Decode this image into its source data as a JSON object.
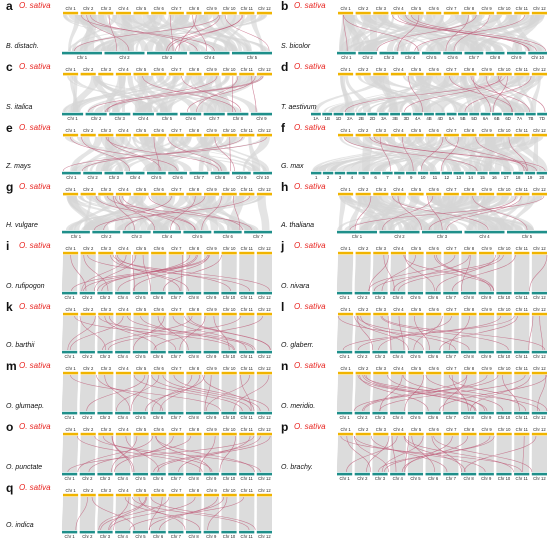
{
  "figure": {
    "reference_color": "#f0b400",
    "query_color": "#1f8f8a",
    "link_color": "#d6d6d6",
    "highlight_color": "#c0607c",
    "panels": [
      {
        "label": "a",
        "top": "O. sativa",
        "bottom": "B. distach.",
        "top_chr": [
          "Chr 1",
          "Chr 2",
          "Chr 3",
          "Chr 4",
          "Chr 5",
          "Chr 6",
          "Chr 7",
          "Chr 8",
          "Chr 9",
          "Chr 10",
          "Chr 11",
          "Chr 12"
        ],
        "bottom_chr": [
          "Chr 1",
          "Chr 2",
          "Chr 3",
          "Chr 4",
          "Chr 5"
        ]
      },
      {
        "label": "b",
        "top": "O. sativa",
        "bottom": "S. bicolor",
        "top_chr": [
          "Chr 1",
          "Chr 2",
          "Chr 3",
          "Chr 4",
          "Chr 5",
          "Chr 6",
          "Chr 7",
          "Chr 8",
          "Chr 9",
          "Chr 10",
          "Chr 11",
          "Chr 12"
        ],
        "bottom_chr": [
          "Chr 1",
          "Chr 2",
          "Chr 3",
          "Chr 4",
          "Chr 5",
          "Chr 6",
          "Chr 7",
          "Chr 8",
          "Chr 9",
          "Chr 10"
        ]
      },
      {
        "label": "c",
        "top": "O. sativa",
        "bottom": "S. italica",
        "top_chr": [
          "Chr 1",
          "Chr 2",
          "Chr 3",
          "Chr 4",
          "Chr 5",
          "Chr 6",
          "Chr 7",
          "Chr 8",
          "Chr 9",
          "Chr 10",
          "Chr 11",
          "Chr 12"
        ],
        "bottom_chr": [
          "Chr 1",
          "Chr 2",
          "Chr 3",
          "Chr 4",
          "Chr 5",
          "Chr 6",
          "Chr 7",
          "Chr 8",
          "Chr 9"
        ]
      },
      {
        "label": "d",
        "top": "O. sativa",
        "bottom": "T. aestivum",
        "top_chr": [
          "Chr 1",
          "Chr 2",
          "Chr 3",
          "Chr 4",
          "Chr 5",
          "Chr 6",
          "Chr 7",
          "Chr 8",
          "Chr 9",
          "Chr 10",
          "Chr 11",
          "Chr 12"
        ],
        "bottom_chr": [
          "1A",
          "1B",
          "1D",
          "2A",
          "2B",
          "2D",
          "3A",
          "3B",
          "3D",
          "4A",
          "4B",
          "4D",
          "5A",
          "5B",
          "5D",
          "6A",
          "6B",
          "6D",
          "7A",
          "7B",
          "7D"
        ]
      },
      {
        "label": "e",
        "top": "O. sativa",
        "bottom": "Z. mays",
        "top_chr": [
          "Chr 1",
          "Chr 2",
          "Chr 3",
          "Chr 4",
          "Chr 5",
          "Chr 6",
          "Chr 7",
          "Chr 8",
          "Chr 9",
          "Chr 10",
          "Chr 11",
          "Chr 12"
        ],
        "bottom_chr": [
          "Chr 1",
          "Chr 2",
          "Chr 3",
          "Chr 4",
          "Chr 5",
          "Chr 6",
          "Chr 7",
          "Chr 8",
          "Chr 9",
          "Chr 10"
        ]
      },
      {
        "label": "f",
        "top": "O. sativa",
        "bottom": "G. max",
        "top_chr": [
          "Chr 1",
          "Chr 2",
          "Chr 3",
          "Chr 4",
          "Chr 5",
          "Chr 6",
          "Chr 7",
          "Chr 8",
          "Chr 9",
          "Chr 10",
          "Chr 11",
          "Chr 12"
        ],
        "bottom_chr": [
          "1",
          "2",
          "3",
          "4",
          "5",
          "6",
          "7",
          "8",
          "9",
          "10",
          "11",
          "12",
          "13",
          "14",
          "15",
          "16",
          "17",
          "18",
          "19",
          "20"
        ]
      },
      {
        "label": "g",
        "top": "O. sativa",
        "bottom": "H. vulgare",
        "top_chr": [
          "Chr 1",
          "Chr 2",
          "Chr 3",
          "Chr 4",
          "Chr 5",
          "Chr 6",
          "Chr 7",
          "Chr 8",
          "Chr 9",
          "Chr 10",
          "Chr 11",
          "Chr 12"
        ],
        "bottom_chr": [
          "Chr 1",
          "Chr 2",
          "Chr 3",
          "Chr 4",
          "Chr 5",
          "Chr 6",
          "Chr 7"
        ]
      },
      {
        "label": "h",
        "top": "O. sativa",
        "bottom": "A. thaliana",
        "top_chr": [
          "Chr 1",
          "Chr 2",
          "Chr 3",
          "Chr 4",
          "Chr 5",
          "Chr 6",
          "Chr 7",
          "Chr 8",
          "Chr 9",
          "Chr 10",
          "Chr 11",
          "Chr 12"
        ],
        "bottom_chr": [
          "Chr 1",
          "Chr 2",
          "Chr 3",
          "Chr 4",
          "Chr 5"
        ]
      },
      {
        "label": "i",
        "top": "O. sativa",
        "bottom": "O. rufipogon",
        "top_chr": [
          "Chr 1",
          "Chr 2",
          "Chr 3",
          "Chr 4",
          "Chr 5",
          "Chr 6",
          "Chr 7",
          "Chr 8",
          "Chr 9",
          "Chr 10",
          "Chr 11",
          "Chr 12"
        ],
        "bottom_chr": [
          "Chr 1",
          "Chr 2",
          "Chr 3",
          "Chr 4",
          "Chr 5",
          "Chr 6",
          "Chr 7",
          "Chr 8",
          "Chr 9",
          "Chr 10",
          "Chr 11",
          "Chr 12"
        ]
      },
      {
        "label": "j",
        "top": "O. sativa",
        "bottom": "O. nivara",
        "top_chr": [
          "Chr 1",
          "Chr 2",
          "Chr 3",
          "Chr 4",
          "Chr 5",
          "Chr 6",
          "Chr 7",
          "Chr 8",
          "Chr 9",
          "Chr 10",
          "Chr 11",
          "Chr 12"
        ],
        "bottom_chr": [
          "Chr 1",
          "Chr 2",
          "Chr 3",
          "Chr 4",
          "Chr 5",
          "Chr 6",
          "Chr 7",
          "Chr 8",
          "Chr 9",
          "Chr 10",
          "Chr 11",
          "Chr 12"
        ]
      },
      {
        "label": "k",
        "top": "O. sativa",
        "bottom": "O. barthii",
        "top_chr": [
          "Chr 1",
          "Chr 2",
          "Chr 3",
          "Chr 4",
          "Chr 5",
          "Chr 6",
          "Chr 7",
          "Chr 8",
          "Chr 9",
          "Chr 10",
          "Chr 11",
          "Chr 12"
        ],
        "bottom_chr": [
          "Chr 1",
          "Chr 2",
          "Chr 3",
          "Chr 4",
          "Chr 5",
          "Chr 6",
          "Chr 7",
          "Chr 8",
          "Chr 9",
          "Chr 10",
          "Chr 11",
          "Chr 12"
        ]
      },
      {
        "label": "l",
        "top": "O. sativa",
        "bottom": "O. glaberr.",
        "top_chr": [
          "Chr 1",
          "Chr 2",
          "Chr 3",
          "Chr 4",
          "Chr 5",
          "Chr 6",
          "Chr 7",
          "Chr 8",
          "Chr 9",
          "Chr 10",
          "Chr 11",
          "Chr 12"
        ],
        "bottom_chr": [
          "Chr 1",
          "Chr 2",
          "Chr 3",
          "Chr 4",
          "Chr 5",
          "Chr 6",
          "Chr 7",
          "Chr 8",
          "Chr 9",
          "Chr 10",
          "Chr 11",
          "Chr 12"
        ]
      },
      {
        "label": "m",
        "top": "O. sativa",
        "bottom": "O. glumaep.",
        "top_chr": [
          "Chr 1",
          "Chr 2",
          "Chr 3",
          "Chr 4",
          "Chr 5",
          "Chr 6",
          "Chr 7",
          "Chr 8",
          "Chr 9",
          "Chr 10",
          "Chr 11",
          "Chr 12"
        ],
        "bottom_chr": [
          "Chr 1",
          "Chr 2",
          "Chr 3",
          "Chr 4",
          "Chr 5",
          "Chr 6",
          "Chr 7",
          "Chr 8",
          "Chr 9",
          "Chr 10",
          "Chr 11",
          "Chr 12"
        ]
      },
      {
        "label": "n",
        "top": "O. sativa",
        "bottom": "O. meridio.",
        "top_chr": [
          "Chr 1",
          "Chr 2",
          "Chr 3",
          "Chr 4",
          "Chr 5",
          "Chr 6",
          "Chr 7",
          "Chr 8",
          "Chr 9",
          "Chr 10",
          "Chr 11",
          "Chr 12"
        ],
        "bottom_chr": [
          "Chr 1",
          "Chr 2",
          "Chr 3",
          "Chr 4",
          "Chr 5",
          "Chr 6",
          "Chr 7",
          "Chr 8",
          "Chr 9",
          "Chr 10",
          "Chr 11",
          "Chr 12"
        ]
      },
      {
        "label": "o",
        "top": "O. sativa",
        "bottom": "O. punctate",
        "top_chr": [
          "Chr 1",
          "Chr 2",
          "Chr 3",
          "Chr 4",
          "Chr 5",
          "Chr 6",
          "Chr 7",
          "Chr 8",
          "Chr 9",
          "Chr 10",
          "Chr 11",
          "Chr 12"
        ],
        "bottom_chr": [
          "Chr 1",
          "Chr 2",
          "Chr 3",
          "Chr 4",
          "Chr 5",
          "Chr 6",
          "Chr 7",
          "Chr 8",
          "Chr 9",
          "Chr 10",
          "Chr 11",
          "Chr 12"
        ]
      },
      {
        "label": "p",
        "top": "O. sativa",
        "bottom": "O. brachy.",
        "top_chr": [
          "Chr 1",
          "Chr 2",
          "Chr 3",
          "Chr 4",
          "Chr 5",
          "Chr 6",
          "Chr 7",
          "Chr 8",
          "Chr 9",
          "Chr 10",
          "Chr 11",
          "Chr 12"
        ],
        "bottom_chr": [
          "Chr 1",
          "Chr 2",
          "Chr 3",
          "Chr 4",
          "Chr 5",
          "Chr 6",
          "Chr 7",
          "Chr 8",
          "Chr 9",
          "Chr 10",
          "Chr 11",
          "Chr 12"
        ]
      },
      {
        "label": "q",
        "top": "O. sativa",
        "bottom": "O. indica",
        "top_chr": [
          "Chr 1",
          "Chr 2",
          "Chr 3",
          "Chr 4",
          "Chr 5",
          "Chr 6",
          "Chr 7",
          "Chr 8",
          "Chr 9",
          "Chr 10",
          "Chr 11",
          "Chr 12"
        ],
        "bottom_chr": [
          "Chr 1",
          "Chr 2",
          "Chr 3",
          "Chr 4",
          "Chr 5",
          "Chr 6",
          "Chr 7",
          "Chr 8",
          "Chr 9",
          "Chr 10",
          "Chr 11",
          "Chr 12"
        ]
      }
    ]
  }
}
